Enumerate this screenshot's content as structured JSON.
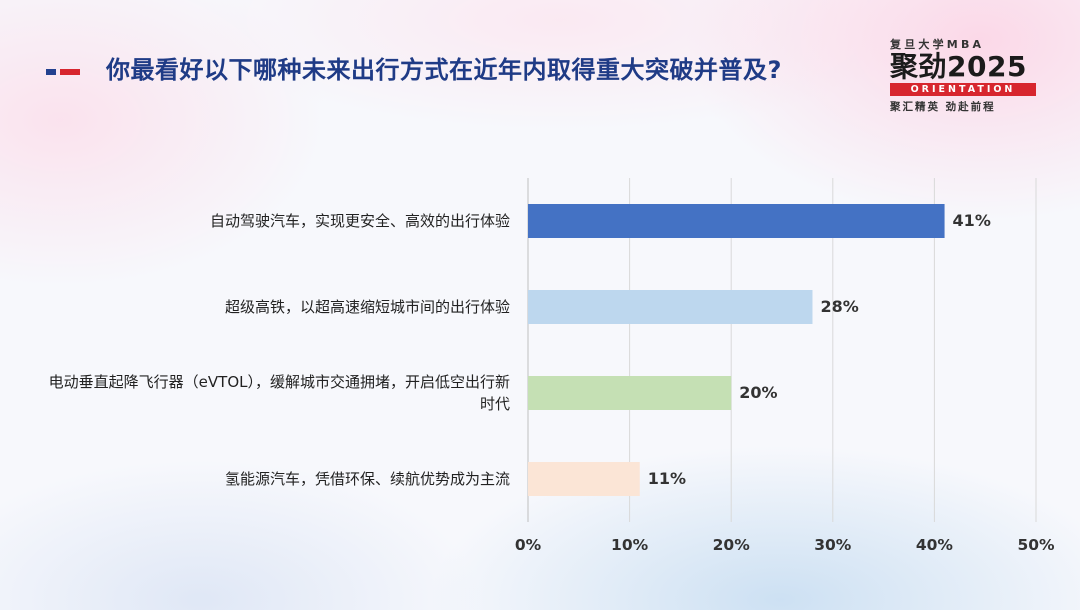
{
  "header": {
    "title": "你最看好以下哪种未来出行方式在近年内取得重大突破并普及?"
  },
  "logo": {
    "line1": "复旦大学MBA",
    "line2": "聚劲2025",
    "line3": "ORIENTATION",
    "line4": "聚汇精英  劲赴前程"
  },
  "chart_data": {
    "type": "bar",
    "orientation": "horizontal",
    "categories": [
      "自动驾驶汽车，实现更安全、高效的出行体验",
      "超级高铁，以超高速缩短城市间的出行体验",
      "电动垂直起降飞行器（eVTOL），缓解城市交通拥堵，开启低空出行新时代",
      "氢能源汽车，凭借环保、续航优势成为主流"
    ],
    "values": [
      41,
      28,
      20,
      11
    ],
    "value_labels": [
      "41%",
      "28%",
      "20%",
      "11%"
    ],
    "bar_colors": [
      "#4472c4",
      "#bdd7ee",
      "#c5e0b4",
      "#fbe5d6"
    ],
    "x_ticks": [
      "0%",
      "10%",
      "20%",
      "30%",
      "40%",
      "50%"
    ],
    "xlim": [
      0,
      50
    ],
    "grid": true,
    "legend": "none"
  }
}
